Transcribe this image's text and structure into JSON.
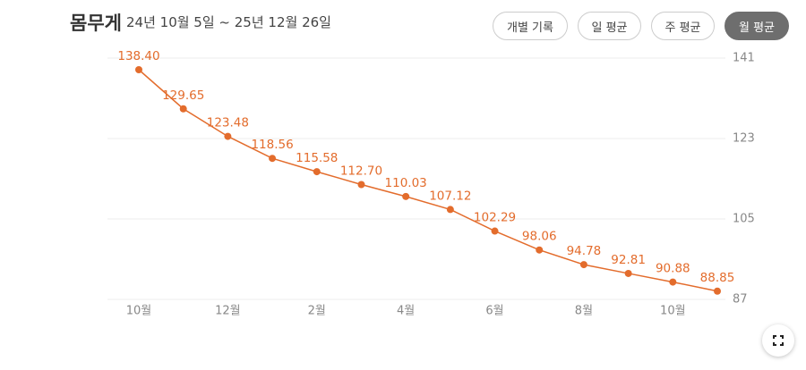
{
  "chart_data": {
    "type": "line",
    "title": "몸무게",
    "subtitle": "24년 10월 5일 ~ 25년 12월 26일",
    "categories": [
      "10월",
      null,
      "12월",
      null,
      "2월",
      null,
      "4월",
      null,
      "6월",
      null,
      "8월",
      null,
      "10월",
      null
    ],
    "series": [
      {
        "color": "#e36c2c",
        "values": [
          138.4,
          129.65,
          123.48,
          118.56,
          115.58,
          112.7,
          110.03,
          107.12,
          102.29,
          98.06,
          94.78,
          92.81,
          90.88,
          88.85
        ],
        "value_labels": [
          "138.40",
          "129.65",
          "123.48",
          "118.56",
          "115.58",
          "112.70",
          "110.03",
          "107.12",
          "102.29",
          "98.06",
          "94.78",
          "92.81",
          "90.88",
          "88.85"
        ]
      }
    ],
    "ylim": [
      87,
      141
    ],
    "yticks": [
      87,
      105,
      123,
      141
    ],
    "grid": true
  },
  "controls": {
    "buttons": [
      "개별 기록",
      "일 평균",
      "주 평균",
      "월 평균"
    ]
  }
}
